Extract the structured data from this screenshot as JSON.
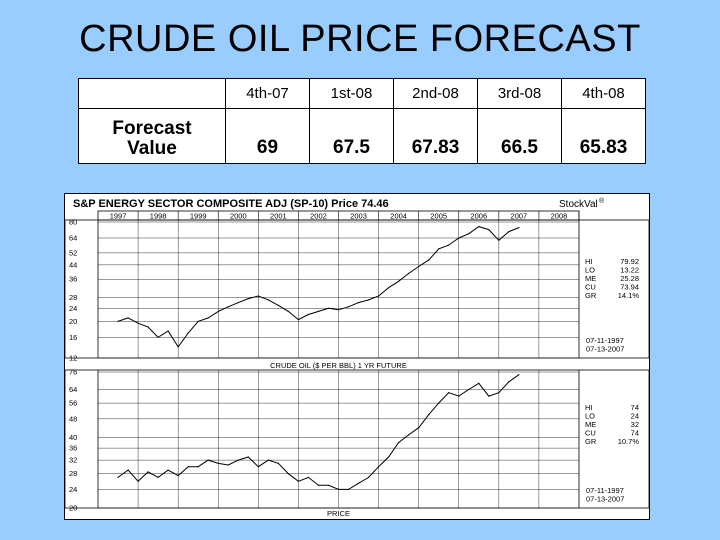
{
  "title": "CRUDE OIL PRICE FORECAST",
  "table": {
    "headers": [
      "",
      "4th-07",
      "1st-08",
      "2nd-08",
      "3rd-08",
      "4th-08"
    ],
    "row_label_line1": "Forecast",
    "row_label_line2": "Value",
    "values": [
      "69",
      "67.5",
      "67.83",
      "66.5",
      "65.83"
    ]
  },
  "chart_header": {
    "title": "S&P ENERGY SECTOR COMPOSITE ADJ (SP-10)  Price 74.46",
    "brand": "StockVal",
    "brand_mark": "®"
  },
  "year_labels": [
    "1997",
    "1998",
    "1999",
    "2000",
    "2001",
    "2002",
    "2003",
    "2004",
    "2005",
    "2006",
    "2007",
    "2008"
  ],
  "chart_data": [
    {
      "type": "line",
      "title": "S&P ENERGY SECTOR COMPOSITE ADJ (SP-10)",
      "y_ticks": [
        12,
        16,
        20,
        24,
        28,
        36,
        44,
        52,
        64,
        80
      ],
      "ylim": [
        12,
        80
      ],
      "log_scale": true,
      "x_range": [
        "1997-07",
        "2007-07"
      ],
      "series": [
        {
          "x": [
            1997.5,
            1997.75,
            1998.0,
            1998.25,
            1998.5,
            1998.75,
            1999.0,
            1999.25,
            1999.5,
            1999.75,
            2000.0,
            2000.25,
            2000.5,
            2000.75,
            2001.0,
            2001.25,
            2001.5,
            2001.75,
            2002.0,
            2002.25,
            2002.5,
            2002.75,
            2003.0,
            2003.25,
            2003.5,
            2003.75,
            2004.0,
            2004.25,
            2004.5,
            2004.75,
            2005.0,
            2005.25,
            2005.5,
            2005.75,
            2006.0,
            2006.25,
            2006.5,
            2006.75,
            2007.0,
            2007.25,
            2007.5
          ],
          "values": [
            20,
            21,
            19.5,
            18.5,
            16,
            17.5,
            14,
            17,
            20,
            21,
            23,
            24.5,
            26,
            27.5,
            28.5,
            27,
            25,
            23,
            20.5,
            22,
            23,
            24,
            23.5,
            24.5,
            26,
            27,
            28.5,
            32,
            35,
            39,
            43,
            47,
            55,
            58,
            64,
            68,
            75,
            72,
            62,
            70,
            74
          ]
        }
      ],
      "stats": [
        {
          "label": "HI",
          "value": "79.92"
        },
        {
          "label": "LO",
          "value": "13.22"
        },
        {
          "label": "ME",
          "value": "25.28"
        },
        {
          "label": "CU",
          "value": "73.94"
        },
        {
          "label": "GR",
          "value": "14.1%"
        }
      ],
      "dates": [
        "07-11-1997",
        "07-13-2007"
      ]
    },
    {
      "type": "line",
      "title": "CRUDE OIL ($ PER BBL) 1 YR FUTURE",
      "y_ticks": [
        20,
        24,
        28,
        32,
        36,
        40,
        48,
        56,
        64,
        76
      ],
      "ylim": [
        20,
        76
      ],
      "log_scale": true,
      "x_range": [
        "1997-07",
        "2007-07"
      ],
      "xlabel": "PRICE",
      "series": [
        {
          "x": [
            1997.5,
            1997.75,
            1998.0,
            1998.25,
            1998.5,
            1998.75,
            1999.0,
            1999.25,
            1999.5,
            1999.75,
            2000.0,
            2000.25,
            2000.5,
            2000.75,
            2001.0,
            2001.25,
            2001.5,
            2001.75,
            2002.0,
            2002.25,
            2002.5,
            2002.75,
            2003.0,
            2003.25,
            2003.5,
            2003.75,
            2004.0,
            2004.25,
            2004.5,
            2004.75,
            2005.0,
            2005.25,
            2005.5,
            2005.75,
            2006.0,
            2006.25,
            2006.5,
            2006.75,
            2007.0,
            2007.25,
            2007.5
          ],
          "values": [
            27,
            29,
            26,
            28.5,
            27,
            29,
            27.5,
            30,
            30,
            32,
            31,
            30.5,
            32,
            33,
            30,
            32,
            31,
            28,
            26,
            27,
            25,
            25,
            24,
            24,
            25.5,
            27,
            30,
            33,
            38,
            41,
            44,
            50,
            56,
            62,
            60,
            64,
            68,
            60,
            62,
            69,
            74
          ]
        }
      ],
      "stats": [
        {
          "label": "HI",
          "value": "74"
        },
        {
          "label": "LO",
          "value": "24"
        },
        {
          "label": "ME",
          "value": "32"
        },
        {
          "label": "CU",
          "value": "74"
        },
        {
          "label": "GR",
          "value": "10.7%"
        }
      ],
      "dates": [
        "07-11-1997",
        "07-13-2007"
      ]
    }
  ]
}
